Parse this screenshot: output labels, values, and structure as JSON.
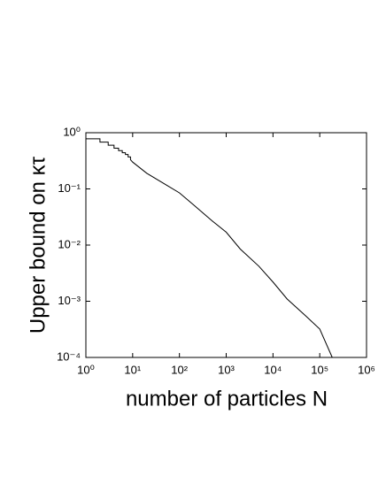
{
  "chart_data": {
    "type": "line",
    "xlabel": "number of particles N",
    "ylabel": "Upper bound on κτ",
    "xscale": "log",
    "yscale": "log",
    "xlim": [
      1,
      1000000
    ],
    "ylim": [
      0.0001,
      1
    ],
    "xticks": [
      {
        "value": 1,
        "label": "10⁰"
      },
      {
        "value": 10,
        "label": "10¹"
      },
      {
        "value": 100,
        "label": "10²"
      },
      {
        "value": 1000,
        "label": "10³"
      },
      {
        "value": 10000,
        "label": "10⁴"
      },
      {
        "value": 100000,
        "label": "10⁵"
      },
      {
        "value": 1000000,
        "label": "10⁶"
      }
    ],
    "yticks": [
      {
        "value": 0.0001,
        "label": "10⁻⁴"
      },
      {
        "value": 0.001,
        "label": "10⁻³"
      },
      {
        "value": 0.01,
        "label": "10⁻²"
      },
      {
        "value": 0.1,
        "label": "10⁻¹"
      },
      {
        "value": 1,
        "label": "10⁰"
      }
    ],
    "color": "#000000",
    "x": [
      1,
      2,
      2,
      3,
      3,
      4,
      4,
      5,
      5,
      6,
      6,
      7,
      7,
      8,
      8,
      9,
      9,
      10,
      20,
      50,
      100,
      200,
      500,
      1000,
      2000,
      5000,
      10000,
      20000,
      50000,
      100000,
      185000
    ],
    "values": [
      0.78,
      0.78,
      0.68,
      0.68,
      0.6,
      0.6,
      0.53,
      0.53,
      0.48,
      0.48,
      0.44,
      0.44,
      0.41,
      0.41,
      0.37,
      0.37,
      0.33,
      0.3,
      0.19,
      0.12,
      0.085,
      0.052,
      0.027,
      0.017,
      0.0085,
      0.0042,
      0.0022,
      0.0011,
      0.00055,
      0.00032,
      0.0001
    ]
  }
}
